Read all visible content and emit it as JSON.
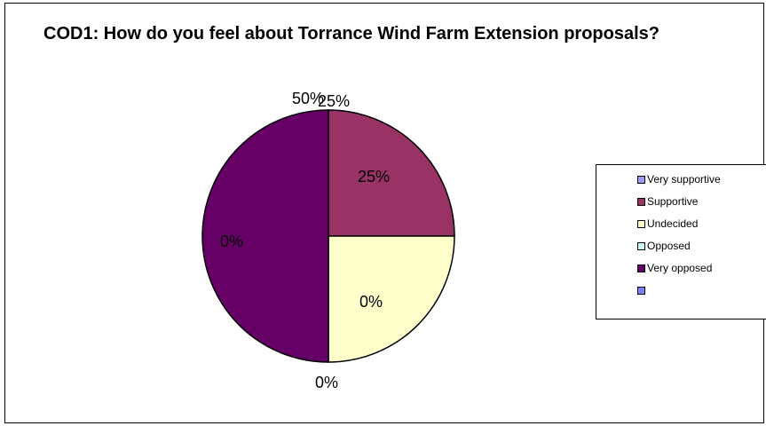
{
  "chart_data": {
    "type": "pie",
    "title": "COD1: How do you feel about Torrance Wind Farm Extension proposals?",
    "slices": [
      {
        "label": "Very supportive",
        "value": 0,
        "percent_label": "0%",
        "color": "#9999FF"
      },
      {
        "label": "Supportive",
        "value": 25,
        "percent_label": "25%",
        "color": "#993366"
      },
      {
        "label": "Undecided",
        "value": 25,
        "percent_label": "25%",
        "color": "#FFFFCC"
      },
      {
        "label": "Opposed",
        "value": 0,
        "percent_label": "0%",
        "color": "#CCFFFF"
      },
      {
        "label": "Very opposed",
        "value": 50,
        "percent_label": "50%",
        "color": "#660066"
      },
      {
        "label": "",
        "value": 0,
        "percent_label": "0%",
        "color": "#8080FF"
      }
    ],
    "legend_position": "right"
  }
}
